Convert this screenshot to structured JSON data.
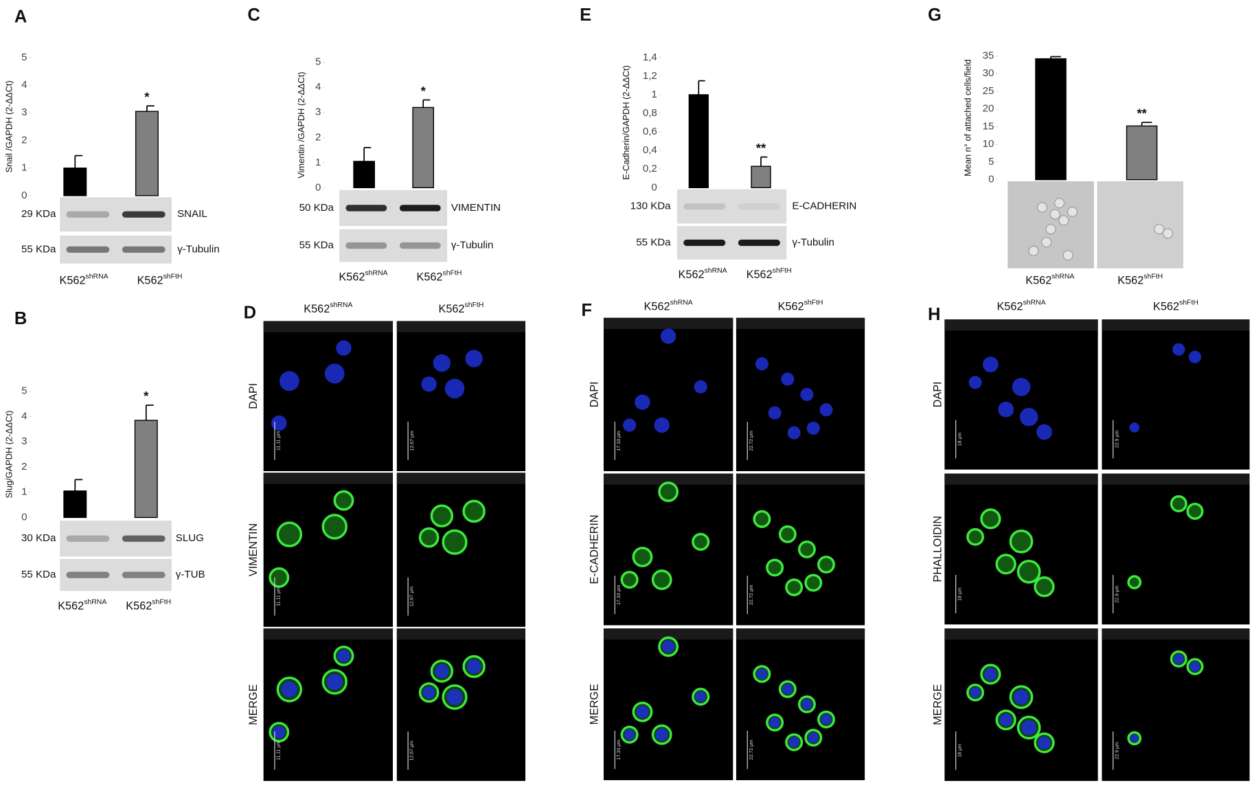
{
  "chart_data": [
    {
      "panel": "A",
      "type": "bar",
      "y_label": "Snail /GAPDH (2-ΔΔCt)",
      "categories": [
        "K562",
        "K562"
      ],
      "category_superscripts": [
        "shRNA",
        "shFtH"
      ],
      "values": [
        1.0,
        3.05
      ],
      "errors": [
        0.45,
        0.2
      ],
      "colors": [
        "#000000",
        "#808080"
      ],
      "significance": [
        null,
        "*"
      ],
      "ylim": [
        0,
        5
      ],
      "yticks": [
        0,
        1,
        2,
        3,
        4,
        5
      ],
      "blot": [
        {
          "size": "29 KDa",
          "protein": "SNAIL"
        },
        {
          "size": "55 KDa",
          "protein": "γ-Tubulin"
        }
      ]
    },
    {
      "panel": "B",
      "type": "bar",
      "y_label": "Slug/GAPDH (2-ΔΔCt)",
      "categories": [
        "K562",
        "K562"
      ],
      "category_superscripts": [
        "shRNA",
        "shFtH"
      ],
      "values": [
        1.05,
        3.85
      ],
      "errors": [
        0.45,
        0.6
      ],
      "colors": [
        "#000000",
        "#808080"
      ],
      "significance": [
        null,
        "*"
      ],
      "ylim": [
        0,
        5
      ],
      "yticks": [
        0,
        1,
        2,
        3,
        4,
        5
      ],
      "blot": [
        {
          "size": "30 KDa",
          "protein": "SLUG"
        },
        {
          "size": "55 KDa",
          "protein": "γ-TUB"
        }
      ]
    },
    {
      "panel": "C",
      "type": "bar",
      "y_label": "Vimentin /GAPDH (2-ΔΔCt)",
      "categories": [
        "K562",
        "K562"
      ],
      "category_superscripts": [
        "shRNA",
        "shFtH"
      ],
      "values": [
        1.05,
        3.2
      ],
      "errors": [
        0.55,
        0.3
      ],
      "colors": [
        "#000000",
        "#808080"
      ],
      "significance": [
        null,
        "*"
      ],
      "ylim": [
        0,
        5
      ],
      "yticks": [
        0,
        1,
        2,
        3,
        4,
        5
      ],
      "blot": [
        {
          "size": "50 KDa",
          "protein": "VIMENTIN"
        },
        {
          "size": "55 KDa",
          "protein": "γ-Tubulin"
        }
      ]
    },
    {
      "panel": "E",
      "type": "bar",
      "y_label": "E-Cadherin/GAPDH (2-ΔΔCt)",
      "categories": [
        "K562",
        "K562"
      ],
      "category_superscripts": [
        "shRNA",
        "shFtH"
      ],
      "values": [
        1.0,
        0.23
      ],
      "errors": [
        0.15,
        0.1
      ],
      "colors": [
        "#000000",
        "#808080"
      ],
      "significance": [
        null,
        "**"
      ],
      "ylim": [
        0,
        1.4
      ],
      "yticks": [
        0,
        {
          "value": 0.2,
          "label": "0,2"
        },
        {
          "value": 0.4,
          "label": "0,4"
        },
        {
          "value": 0.6,
          "label": "0,6"
        },
        {
          "value": 0.8,
          "label": "0,8"
        },
        1,
        {
          "value": 1.2,
          "label": "1,2"
        },
        {
          "value": 1.4,
          "label": "1,4"
        }
      ],
      "blot": [
        {
          "size": "130 KDa",
          "protein": "E-CADHERIN"
        },
        {
          "size": "55 KDa",
          "protein": "γ-Tubulin"
        }
      ]
    },
    {
      "panel": "G",
      "type": "bar",
      "y_label": "Mean n° of attached cells/field",
      "categories": [
        "K562",
        "K562"
      ],
      "category_superscripts": [
        "shRNA",
        "shFtH"
      ],
      "values": [
        34.2,
        15.2
      ],
      "errors": [
        0.6,
        1.0
      ],
      "colors": [
        "#000000",
        "#808080"
      ],
      "significance": [
        null,
        "**"
      ],
      "ylim": [
        0,
        35
      ],
      "yticks": [
        0,
        5,
        10,
        15,
        20,
        25,
        30,
        35
      ]
    }
  ],
  "microscopy": [
    {
      "panel": "D",
      "columns": [
        "K562",
        "K562"
      ],
      "column_superscripts": [
        "shRNA",
        "shFtH"
      ],
      "rows": [
        "DAPI",
        "VIMENTIN",
        "MERGE"
      ],
      "scale_labels": [
        "11.11 µm",
        "12.67 µm"
      ]
    },
    {
      "panel": "F",
      "columns": [
        "K562",
        "K562"
      ],
      "column_superscripts": [
        "shRNA",
        "shFtH"
      ],
      "rows": [
        "DAPI",
        "E-CADHERIN",
        "MERGE"
      ],
      "scale_labels": [
        "17.33 µm",
        "22.72 µm"
      ]
    },
    {
      "panel": "H",
      "columns": [
        "K562",
        "K562"
      ],
      "column_superscripts": [
        "shRNA",
        "shFtH"
      ],
      "rows": [
        "DAPI",
        "PHALLOIDIN",
        "MERGE"
      ],
      "scale_labels": [
        "18 µm",
        "22.9 µm"
      ]
    }
  ]
}
